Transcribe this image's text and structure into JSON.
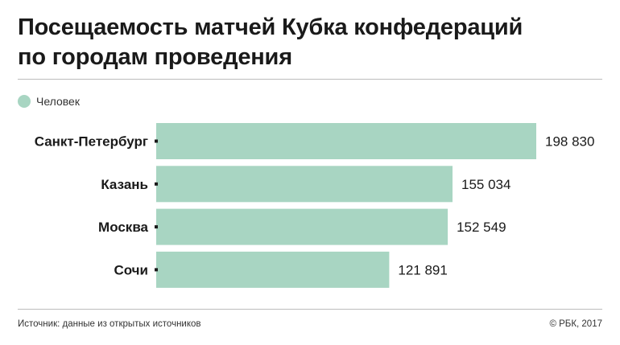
{
  "title_line1": "Посещаемость матчей Кубка конфедераций",
  "title_line2": "по городам проведения",
  "legend": "Человек",
  "footer_source": "Источник: данные из открытых источников",
  "footer_copyright": "© РБК, 2017",
  "colors": {
    "bar": "#a8d5c2",
    "text": "#1a1a1a",
    "tick": "#1a1a1a"
  },
  "chart_data": {
    "type": "bar",
    "orientation": "horizontal",
    "categories": [
      "Санкт-Петербург",
      "Казань",
      "Москва",
      "Сочи"
    ],
    "series": [
      {
        "name": "Человек",
        "values": [
          198830,
          155034,
          152549,
          121891
        ]
      }
    ],
    "value_labels": [
      "198 830",
      "155 034",
      "152 549",
      "121 891"
    ],
    "legend_position": "top-left",
    "grid": false
  }
}
